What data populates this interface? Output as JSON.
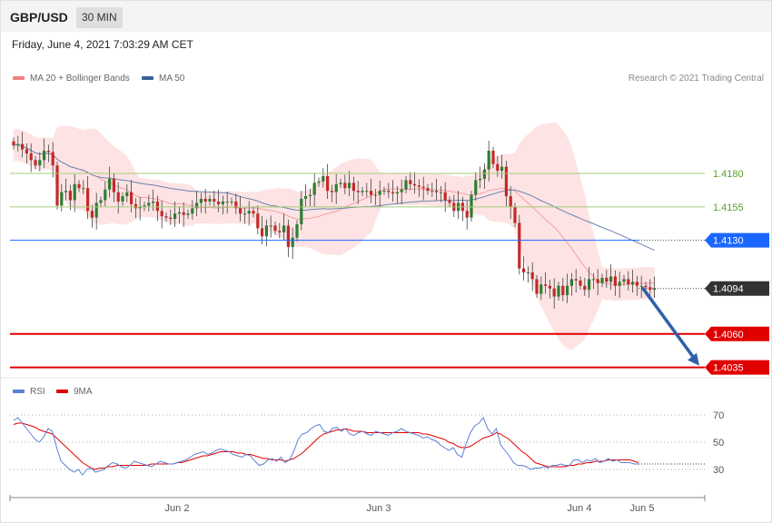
{
  "header": {
    "symbol": "GBP/USD",
    "timeframe": "30 MIN"
  },
  "datetime": "Friday, June 4, 2021 7:03:29 AM CET",
  "credit": "Research © 2021 Trading Central",
  "colors": {
    "bollinger": "#f08080",
    "ma50": "#3a5f9a",
    "rsi": "#5b7fd6",
    "ma9": "#e00000",
    "resistance": "#7cb342",
    "pivot": "#1a66ff",
    "support": "#e00000",
    "current": "#333333",
    "arrow": "#2f5fa8"
  },
  "chart_data": [
    {
      "type": "candlestick",
      "legend": [
        {
          "name": "MA 20 + Bollinger Bands",
          "color": "#f08080"
        },
        {
          "name": "MA 50",
          "color": "#3a5f9a"
        }
      ],
      "ylim": [
        1.403,
        1.4235
      ],
      "levels": [
        {
          "value": "1.4180",
          "style": "resistance"
        },
        {
          "value": "1.4155",
          "style": "resistance"
        },
        {
          "value": "1.4130",
          "style": "pivot"
        },
        {
          "value": "1.4094",
          "style": "current"
        },
        {
          "value": "1.4060",
          "style": "support"
        },
        {
          "value": "1.4035",
          "style": "support"
        }
      ],
      "x_ticks": [
        "Jun 2",
        "Jun 3",
        "Jun 4",
        "Jun 5"
      ],
      "close": [
        1.4201,
        1.4202,
        1.4198,
        1.4195,
        1.419,
        1.4186,
        1.419,
        1.4197,
        1.4196,
        1.4186,
        1.4156,
        1.4166,
        1.4167,
        1.416,
        1.4172,
        1.4169,
        1.4169,
        1.4152,
        1.4147,
        1.4158,
        1.416,
        1.4168,
        1.4176,
        1.4166,
        1.4159,
        1.4163,
        1.4166,
        1.4157,
        1.4154,
        1.4155,
        1.4156,
        1.4158,
        1.4159,
        1.4152,
        1.4148,
        1.4147,
        1.4146,
        1.415,
        1.4151,
        1.4149,
        1.415,
        1.4154,
        1.4158,
        1.4161,
        1.4159,
        1.4161,
        1.4159,
        1.4157,
        1.4159,
        1.4159,
        1.4159,
        1.4154,
        1.415,
        1.415,
        1.4152,
        1.415,
        1.4139,
        1.4133,
        1.4141,
        1.4141,
        1.4137,
        1.4136,
        1.4141,
        1.4125,
        1.4132,
        1.4142,
        1.4161,
        1.4163,
        1.4164,
        1.4173,
        1.4174,
        1.4178,
        1.4167,
        1.4166,
        1.4172,
        1.4173,
        1.4169,
        1.4173,
        1.4167,
        1.4166,
        1.4167,
        1.4167,
        1.4164,
        1.4164,
        1.4167,
        1.4167,
        1.4166,
        1.4165,
        1.4166,
        1.4168,
        1.4175,
        1.4172,
        1.4171,
        1.417,
        1.4169,
        1.4167,
        1.4167,
        1.4166,
        1.4166,
        1.416,
        1.4158,
        1.4152,
        1.4158,
        1.4152,
        1.4147,
        1.4164,
        1.4175,
        1.4176,
        1.4183,
        1.4197,
        1.4187,
        1.4182,
        1.4185,
        1.4163,
        1.4155,
        1.4143,
        1.4109,
        1.4106,
        1.4106,
        1.4101,
        1.409,
        1.4097,
        1.4096,
        1.4094,
        1.4088,
        1.4096,
        1.4089,
        1.4096,
        1.4101,
        1.41,
        1.4096,
        1.4093,
        1.4101,
        1.4101,
        1.4098,
        1.4102,
        1.4099,
        1.4103,
        1.4096,
        1.4099,
        1.4101,
        1.4097,
        1.4099,
        1.4096,
        1.4096,
        1.4095,
        1.4093,
        1.4094
      ]
    },
    {
      "type": "line",
      "legend": [
        {
          "name": "RSI",
          "color": "#5b7fd6"
        },
        {
          "name": "9MA",
          "color": "#e00000"
        }
      ],
      "ylim": [
        10,
        90
      ],
      "y_ticks": [
        "70",
        "50",
        "30"
      ],
      "rsi": [
        66,
        68,
        64,
        60,
        56,
        52,
        50,
        54,
        60,
        58,
        46,
        36,
        33,
        30,
        28,
        30,
        26,
        30,
        31,
        28,
        29,
        30,
        33,
        35,
        34,
        32,
        31,
        33,
        36,
        35,
        34,
        33,
        32,
        34,
        36,
        35,
        34,
        34,
        35,
        36,
        37,
        39,
        41,
        42,
        43,
        41,
        42,
        44,
        45,
        44,
        43,
        41,
        40,
        39,
        41,
        40,
        36,
        33,
        34,
        37,
        38,
        36,
        39,
        35,
        37,
        43,
        52,
        56,
        57,
        60,
        62,
        63,
        58,
        57,
        60,
        61,
        58,
        60,
        56,
        55,
        57,
        58,
        56,
        55,
        58,
        57,
        56,
        55,
        57,
        58,
        60,
        58,
        57,
        56,
        55,
        53,
        54,
        52,
        51,
        48,
        46,
        44,
        46,
        41,
        39,
        49,
        57,
        62,
        64,
        68,
        60,
        56,
        60,
        48,
        44,
        40,
        35,
        33,
        33,
        32,
        30,
        31,
        31,
        32,
        31,
        33,
        33,
        34,
        33,
        33,
        37,
        37,
        35,
        37,
        36,
        38,
        35,
        36,
        38,
        36,
        37,
        35,
        35,
        35,
        34,
        34
      ],
      "ma9": [
        63,
        64,
        64,
        63,
        62,
        61,
        59,
        58,
        57,
        56,
        53,
        50,
        47,
        44,
        41,
        38,
        35,
        33,
        31,
        30,
        31,
        31,
        32,
        32,
        33,
        33,
        33,
        33,
        33,
        33,
        33,
        33,
        34,
        34,
        34,
        34,
        34,
        34,
        35,
        35,
        36,
        37,
        38,
        39,
        40,
        40,
        41,
        42,
        43,
        43,
        43,
        43,
        42,
        42,
        41,
        41,
        40,
        39,
        38,
        38,
        37,
        37,
        37,
        36,
        37,
        38,
        40,
        42,
        45,
        48,
        51,
        54,
        56,
        57,
        58,
        59,
        59,
        60,
        59,
        58,
        58,
        58,
        57,
        57,
        57,
        57,
        57,
        57,
        57,
        57,
        57,
        57,
        57,
        57,
        57,
        56,
        56,
        55,
        54,
        53,
        52,
        50,
        49,
        47,
        46,
        46,
        47,
        49,
        51,
        53,
        54,
        55,
        57,
        56,
        54,
        52,
        49,
        46,
        43,
        41,
        38,
        35,
        34,
        33,
        32,
        32,
        32,
        32,
        32,
        33,
        33,
        34,
        34,
        35,
        35,
        36,
        36,
        36,
        37,
        37,
        37,
        37,
        37,
        37,
        36,
        35
      ]
    }
  ]
}
